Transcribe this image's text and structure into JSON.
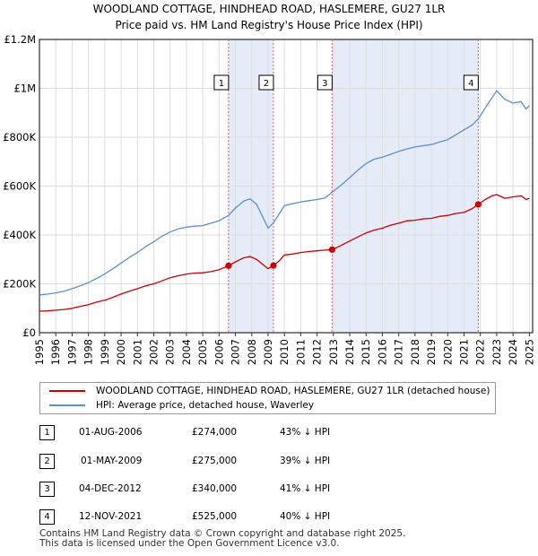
{
  "title_line1": "WOODLAND COTTAGE, HINDHEAD ROAD, HASLEMERE, GU27 1LR",
  "title_line2": "Price paid vs. HM Land Registry's House Price Index (HPI)",
  "colors": {
    "property_line": "#cc0000",
    "hpi_line": "#5b8fcf",
    "shade": "#dce6f5",
    "marker_line": "#e06060",
    "grid": "#dddddd"
  },
  "chart_data": {
    "type": "line",
    "title": "WOODLAND COTTAGE, HINDHEAD ROAD, HASLEMERE, GU27 1LR — Price paid vs. HM Land Registry's House Price Index (HPI)",
    "xlabel": "",
    "ylabel": "",
    "xlim": [
      1995.0,
      2025.2
    ],
    "ylim": [
      0,
      1200000
    ],
    "y_ticks": [
      0,
      200000,
      400000,
      600000,
      800000,
      1000000,
      1200000
    ],
    "y_tick_labels": [
      "£0",
      "£200K",
      "£400K",
      "£600K",
      "£800K",
      "£1M",
      "£1.2M"
    ],
    "x_ticks": [
      1995,
      1996,
      1997,
      1998,
      1999,
      2000,
      2001,
      2002,
      2003,
      2004,
      2005,
      2006,
      2007,
      2008,
      2009,
      2010,
      2011,
      2012,
      2013,
      2014,
      2015,
      2016,
      2017,
      2018,
      2019,
      2020,
      2021,
      2022,
      2023,
      2024,
      2025
    ],
    "x_tick_labels": [
      "1995",
      "1996",
      "1997",
      "1998",
      "1999",
      "2000",
      "2001",
      "2002",
      "2003",
      "2004",
      "2005",
      "2006",
      "2007",
      "2008",
      "2009",
      "2010",
      "2011",
      "2012",
      "2013",
      "2014",
      "2015",
      "2016",
      "2017",
      "2018",
      "2019",
      "2020",
      "2021",
      "2022",
      "2023",
      "2024",
      "2025"
    ],
    "shaded_ranges": [
      [
        2006.58,
        2009.33
      ],
      [
        2012.92,
        2021.87
      ]
    ],
    "series": [
      {
        "name": "WOODLAND COTTAGE, HINDHEAD ROAD, HASLEMERE, GU27 1LR (detached house)",
        "color": "#cc0000",
        "x": [
          1995.0,
          1995.5,
          1996.0,
          1996.5,
          1997.0,
          1997.5,
          1998.0,
          1998.5,
          1999.0,
          1999.5,
          2000.0,
          2000.5,
          2001.0,
          2001.5,
          2002.0,
          2002.5,
          2003.0,
          2003.5,
          2004.0,
          2004.5,
          2005.0,
          2005.5,
          2006.0,
          2006.58,
          2007.0,
          2007.5,
          2007.9,
          2008.3,
          2008.7,
          2009.0,
          2009.33,
          2009.7,
          2010.0,
          2010.5,
          2011.0,
          2011.5,
          2012.0,
          2012.5,
          2012.92,
          2013.5,
          2014.0,
          2014.5,
          2015.0,
          2015.5,
          2016.0,
          2016.5,
          2017.0,
          2017.5,
          2018.0,
          2018.5,
          2019.0,
          2019.5,
          2020.0,
          2020.5,
          2021.0,
          2021.5,
          2021.87,
          2022.3,
          2022.7,
          2023.0,
          2023.5,
          2024.0,
          2024.5,
          2024.8,
          2025.0
        ],
        "y": [
          88000,
          89000,
          92000,
          95000,
          100000,
          108000,
          115000,
          125000,
          133000,
          145000,
          158000,
          170000,
          180000,
          192000,
          200000,
          212000,
          225000,
          233000,
          240000,
          244000,
          245000,
          250000,
          258000,
          274000,
          290000,
          306000,
          312000,
          300000,
          278000,
          262000,
          275000,
          295000,
          318000,
          322000,
          328000,
          332000,
          335000,
          338000,
          340000,
          358000,
          375000,
          392000,
          408000,
          420000,
          428000,
          440000,
          448000,
          458000,
          460000,
          466000,
          468000,
          476000,
          480000,
          488000,
          492000,
          508000,
          525000,
          545000,
          560000,
          565000,
          550000,
          556000,
          560000,
          545000,
          550000
        ]
      },
      {
        "name": "HPI: Average price, detached house, Waverley",
        "color": "#5b8fcf",
        "x": [
          1995.0,
          1995.5,
          1996.0,
          1996.5,
          1997.0,
          1997.5,
          1998.0,
          1998.5,
          1999.0,
          1999.5,
          2000.0,
          2000.5,
          2001.0,
          2001.5,
          2002.0,
          2002.5,
          2003.0,
          2003.5,
          2004.0,
          2004.5,
          2005.0,
          2005.5,
          2006.0,
          2006.58,
          2007.0,
          2007.5,
          2007.9,
          2008.3,
          2008.7,
          2009.0,
          2009.33,
          2009.7,
          2010.0,
          2010.5,
          2011.0,
          2011.5,
          2012.0,
          2012.5,
          2012.92,
          2013.5,
          2014.0,
          2014.5,
          2015.0,
          2015.5,
          2016.0,
          2016.5,
          2017.0,
          2017.5,
          2018.0,
          2018.5,
          2019.0,
          2019.5,
          2020.0,
          2020.5,
          2021.0,
          2021.5,
          2021.87,
          2022.3,
          2022.7,
          2023.0,
          2023.5,
          2024.0,
          2024.5,
          2024.8,
          2025.0
        ],
        "y": [
          155000,
          158000,
          163000,
          170000,
          180000,
          192000,
          205000,
          222000,
          240000,
          262000,
          285000,
          308000,
          328000,
          352000,
          372000,
          395000,
          412000,
          425000,
          432000,
          436000,
          438000,
          448000,
          458000,
          480000,
          510000,
          538000,
          548000,
          525000,
          470000,
          428000,
          450000,
          488000,
          520000,
          528000,
          535000,
          540000,
          545000,
          552000,
          575000,
          605000,
          635000,
          665000,
          692000,
          710000,
          718000,
          730000,
          742000,
          752000,
          760000,
          765000,
          770000,
          780000,
          790000,
          810000,
          830000,
          850000,
          875000,
          920000,
          960000,
          990000,
          955000,
          940000,
          945000,
          915000,
          930000
        ]
      }
    ],
    "sales": [
      {
        "label": "1",
        "date": "01-AUG-2006",
        "x": 2006.58,
        "price": 274000
      },
      {
        "label": "2",
        "date": "01-MAY-2009",
        "x": 2009.33,
        "price": 275000
      },
      {
        "label": "3",
        "date": "04-DEC-2012",
        "x": 2012.92,
        "price": 340000
      },
      {
        "label": "4",
        "date": "12-NOV-2021",
        "x": 2021.87,
        "price": 525000
      }
    ]
  },
  "legend": {
    "property_label": "WOODLAND COTTAGE, HINDHEAD ROAD, HASLEMERE, GU27 1LR (detached house)",
    "hpi_label": "HPI: Average price, detached house, Waverley"
  },
  "transactions": [
    {
      "num": "1",
      "date": "01-AUG-2006",
      "price": "£274,000",
      "hpi": "43% ↓ HPI"
    },
    {
      "num": "2",
      "date": "01-MAY-2009",
      "price": "£275,000",
      "hpi": "39% ↓ HPI"
    },
    {
      "num": "3",
      "date": "04-DEC-2012",
      "price": "£340,000",
      "hpi": "41% ↓ HPI"
    },
    {
      "num": "4",
      "date": "12-NOV-2021",
      "price": "£525,000",
      "hpi": "40% ↓ HPI"
    }
  ],
  "footer": {
    "line1": "Contains HM Land Registry data © Crown copyright and database right 2025.",
    "line2": "This data is licensed under the Open Government Licence v3.0."
  }
}
